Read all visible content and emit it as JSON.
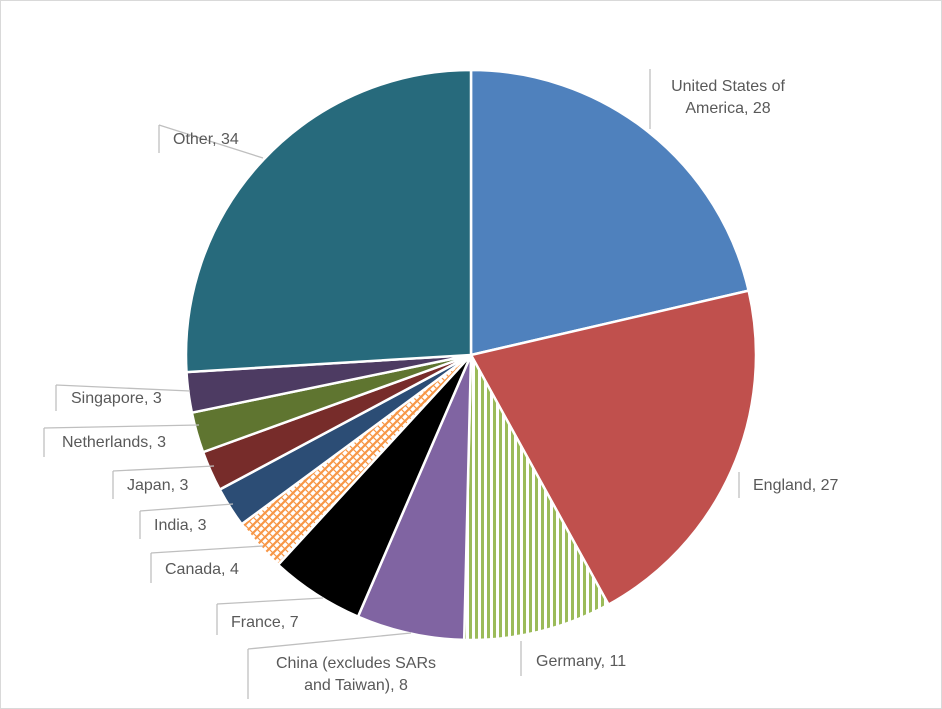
{
  "chart_data": {
    "type": "pie",
    "title": "",
    "slices": [
      {
        "label": "United States of America",
        "value": 28,
        "color": "#4f81bd",
        "pattern": "solid"
      },
      {
        "label": "England",
        "value": 27,
        "color": "#c0504d",
        "pattern": "solid"
      },
      {
        "label": "Germany",
        "value": 11,
        "color": "#9bbb59",
        "pattern": "vertical-stripes"
      },
      {
        "label": "China (excludes SARs and Taiwan)",
        "value": 8,
        "color": "#8064a2",
        "pattern": "solid"
      },
      {
        "label": "France",
        "value": 7,
        "color": "#000000",
        "pattern": "solid"
      },
      {
        "label": "Canada",
        "value": 4,
        "color": "#f79646",
        "pattern": "diagonal-weave"
      },
      {
        "label": "India",
        "value": 3,
        "color": "#2c4d75",
        "pattern": "solid"
      },
      {
        "label": "Japan",
        "value": 3,
        "color": "#772c2a",
        "pattern": "solid"
      },
      {
        "label": "Netherlands",
        "value": 3,
        "color": "#5f7530",
        "pattern": "solid"
      },
      {
        "label": "Singapore",
        "value": 3,
        "color": "#4d3b62",
        "pattern": "solid"
      },
      {
        "label": "Other",
        "value": 34,
        "color": "#276a7c",
        "pattern": "solid"
      }
    ],
    "data_labels": [
      [
        "United States of",
        "America, 28"
      ],
      [
        "England, 27"
      ],
      [
        "Germany, 11"
      ],
      [
        "China (excludes SARs",
        "and Taiwan), 8"
      ],
      [
        "France, 7"
      ],
      [
        "Canada, 4"
      ],
      [
        "India, 3"
      ],
      [
        "Japan, 3"
      ],
      [
        "Netherlands, 3"
      ],
      [
        "Singapore, 3"
      ],
      [
        "Other, 34"
      ]
    ],
    "start_angle_deg": 0,
    "direction": "clockwise"
  }
}
